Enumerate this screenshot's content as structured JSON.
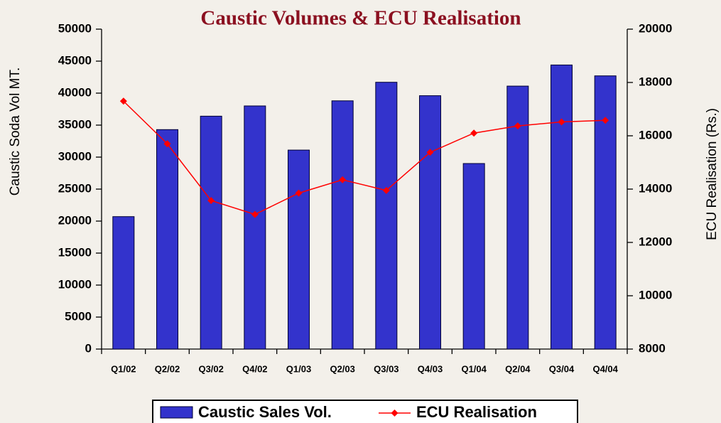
{
  "chart_data": {
    "type": "bar_line",
    "title": "Caustic Volumes & ECU Realisation",
    "y_label": "Caustic Soda Vol MT.",
    "y2_label": "ECU Realisation (Rs.)",
    "categories": [
      "Q1/02",
      "Q2/02",
      "Q3/02",
      "Q4/02",
      "Q1/03",
      "Q2/03",
      "Q3/03",
      "Q4/03",
      "Q1/04",
      "Q2/04",
      "Q3/04",
      "Q4/04"
    ],
    "series": [
      {
        "name": "Caustic Sales Vol.",
        "type": "bar",
        "color": "#3333cc",
        "values": [
          20700,
          34300,
          36400,
          38000,
          31100,
          38800,
          41700,
          39600,
          29000,
          41100,
          44400,
          42700
        ]
      },
      {
        "name": "ECU Realisation",
        "type": "line",
        "axis": "y2",
        "color": "#ff0000",
        "values": [
          17300,
          15700,
          13570,
          13050,
          13850,
          14350,
          13950,
          15380,
          16100,
          16370,
          16520,
          16580
        ]
      }
    ],
    "ylim": [
      0,
      50000
    ],
    "yticks": [
      0,
      5000,
      10000,
      15000,
      20000,
      25000,
      30000,
      35000,
      40000,
      45000,
      50000
    ],
    "y2lim": [
      8000,
      20000
    ],
    "y2ticks": [
      8000,
      10000,
      12000,
      14000,
      16000,
      18000,
      20000
    ],
    "legend": "bottom"
  }
}
